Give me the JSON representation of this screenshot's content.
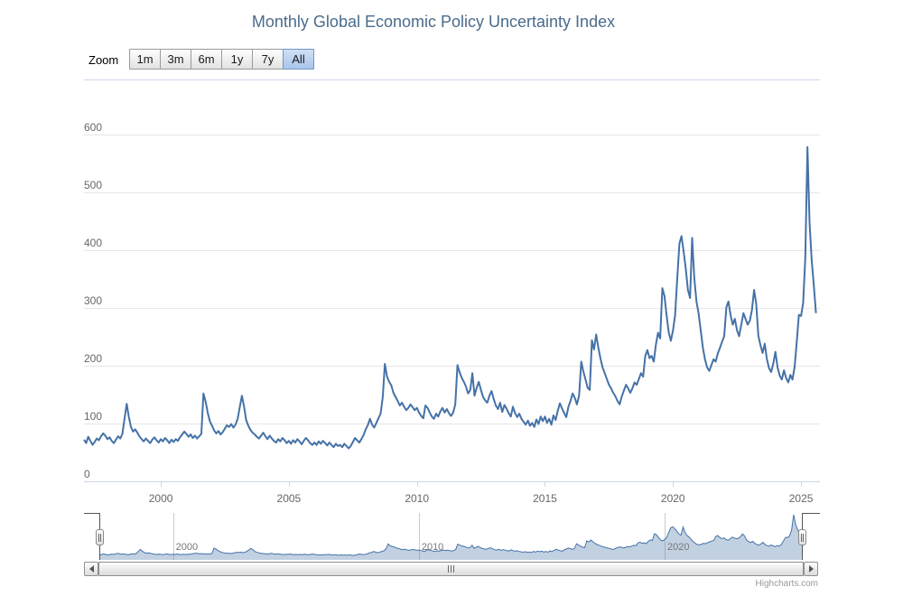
{
  "title": "Monthly Global Economic Policy Uncertainty Index",
  "range_selector": {
    "zoom_label": "Zoom",
    "buttons": [
      {
        "label": "1m",
        "selected": false
      },
      {
        "label": "3m",
        "selected": false
      },
      {
        "label": "6m",
        "selected": false
      },
      {
        "label": "1y",
        "selected": false
      },
      {
        "label": "7y",
        "selected": false
      },
      {
        "label": "All",
        "selected": true
      }
    ]
  },
  "axes": {
    "y_ticks": [
      0,
      100,
      200,
      300,
      400,
      500,
      600
    ],
    "x_ticks": [
      2000,
      2005,
      2010,
      2015,
      2020,
      2025
    ],
    "navigator_ticks": [
      2000,
      2010,
      2020
    ]
  },
  "credits": "Highcharts.com",
  "colors": {
    "series_line": "#4572a7",
    "navigator_fill": "rgba(69,114,167,0.33)",
    "title_text": "#4a6b8c",
    "axis_label": "#666666",
    "grid_line": "#e6e6e6",
    "axis_line": "#ccd6eb",
    "navigator_grid": "#cccccc",
    "navigator_outline": "#555555",
    "selected_button": "#a9c6ea"
  },
  "chart_data": {
    "type": "line",
    "title": "Monthly Global Economic Policy Uncertainty Index",
    "xlabel": "",
    "ylabel": "",
    "frequency": "monthly",
    "x_start": "1997-01",
    "x_end": "2025-08",
    "ylim": [
      0,
      695
    ],
    "grid": true,
    "legend": false,
    "navigator": true,
    "series": [
      {
        "name": "Global Economic Policy Uncertainty Index",
        "values": [
          72,
          66,
          77,
          70,
          63,
          68,
          74,
          71,
          78,
          83,
          79,
          73,
          76,
          70,
          66,
          72,
          78,
          74,
          82,
          108,
          134,
          112,
          94,
          86,
          90,
          84,
          78,
          73,
          69,
          74,
          70,
          66,
          72,
          76,
          71,
          67,
          73,
          69,
          75,
          71,
          66,
          72,
          68,
          73,
          70,
          76,
          81,
          86,
          82,
          77,
          81,
          75,
          79,
          74,
          78,
          82,
          152,
          138,
          118,
          104,
          96,
          88,
          83,
          87,
          81,
          85,
          91,
          97,
          94,
          99,
          93,
          98,
          108,
          128,
          148,
          129,
          106,
          96,
          89,
          84,
          81,
          77,
          74,
          79,
          84,
          78,
          73,
          79,
          74,
          70,
          67,
          73,
          69,
          75,
          71,
          66,
          70,
          65,
          71,
          67,
          73,
          69,
          64,
          70,
          75,
          71,
          66,
          63,
          67,
          63,
          69,
          65,
          70,
          66,
          62,
          67,
          63,
          59,
          65,
          61,
          63,
          59,
          65,
          61,
          57,
          61,
          68,
          75,
          71,
          67,
          73,
          80,
          90,
          97,
          108,
          98,
          93,
          101,
          109,
          117,
          146,
          203,
          181,
          172,
          166,
          153,
          146,
          139,
          131,
          136,
          129,
          123,
          127,
          133,
          128,
          123,
          127,
          119,
          113,
          109,
          131,
          127,
          119,
          112,
          108,
          117,
          112,
          121,
          127,
          119,
          125,
          118,
          113,
          119,
          133,
          201,
          189,
          179,
          172,
          164,
          152,
          158,
          187,
          148,
          162,
          172,
          158,
          146,
          140,
          136,
          148,
          156,
          142,
          131,
          125,
          136,
          120,
          132,
          126,
          118,
          112,
          129,
          118,
          111,
          117,
          108,
          103,
          98,
          105,
          96,
          101,
          94,
          107,
          99,
          112,
          104,
          112,
          101,
          108,
          98,
          114,
          106,
          122,
          135,
          126,
          118,
          111,
          129,
          139,
          152,
          144,
          133,
          148,
          207,
          190,
          176,
          162,
          158,
          244,
          228,
          254,
          231,
          213,
          197,
          187,
          177,
          167,
          161,
          153,
          147,
          139,
          133,
          147,
          157,
          167,
          161,
          153,
          161,
          171,
          167,
          177,
          187,
          181,
          217,
          227,
          213,
          217,
          207,
          237,
          257,
          247,
          334,
          321,
          287,
          257,
          243,
          261,
          287,
          351,
          411,
          424,
          397,
          367,
          331,
          317,
          421,
          351,
          311,
          291,
          261,
          231,
          211,
          197,
          191,
          201,
          211,
          207,
          221,
          231,
          241,
          251,
          301,
          311,
          287,
          271,
          281,
          261,
          251,
          271,
          291,
          281,
          271,
          278,
          296,
          331,
          308,
          252,
          235,
          222,
          238,
          211,
          196,
          189,
          204,
          224,
          197,
          183,
          176,
          192,
          179,
          171,
          184,
          176,
          198,
          242,
          288,
          286,
          308,
          386,
          578,
          448,
          382,
          338,
          291
        ]
      }
    ]
  }
}
